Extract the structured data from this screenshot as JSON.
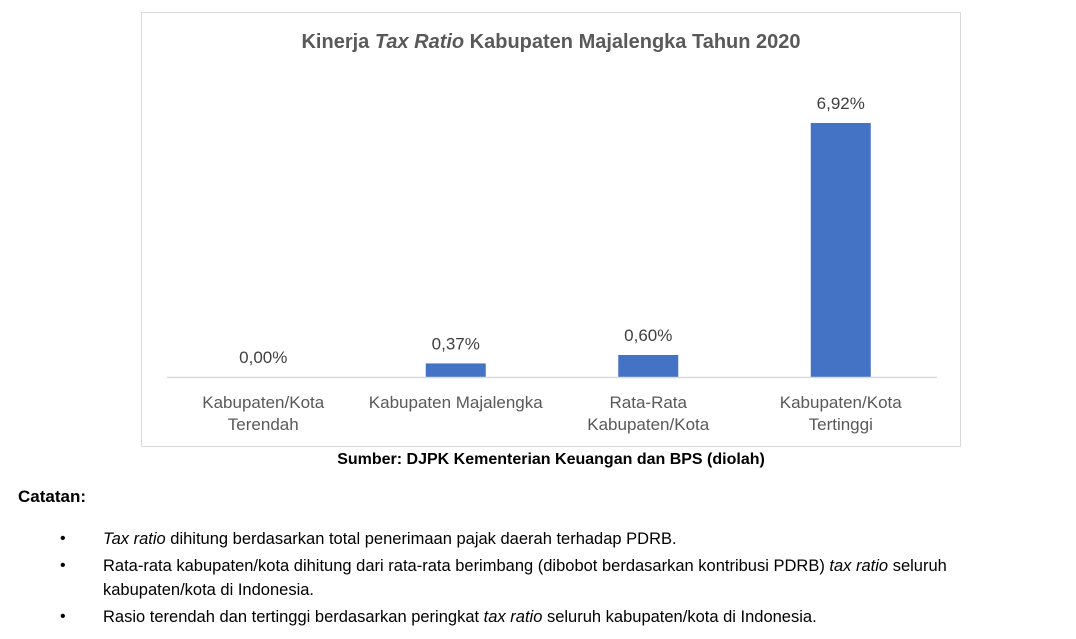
{
  "chart_data": {
    "type": "bar",
    "title_parts": [
      "Kinerja ",
      "Tax Ratio",
      " Kabupaten Majalengka Tahun 2020"
    ],
    "categories": [
      [
        "Kabupaten/Kota",
        "Terendah"
      ],
      [
        "Kabupaten Majalengka"
      ],
      [
        "Rata-Rata",
        "Kabupaten/Kota"
      ],
      [
        "Kabupaten/Kota",
        "Tertinggi"
      ]
    ],
    "values": [
      0.0,
      0.37,
      0.6,
      6.92
    ],
    "data_labels": [
      "0,00%",
      "0,37%",
      "0,60%",
      "6,92%"
    ],
    "ylim": [
      0,
      6.92
    ],
    "bar_color": "#4472c4",
    "axis_color": "#d9d9d9",
    "label_color": "#404040",
    "grid": false,
    "legend": "none",
    "xlabel": "",
    "ylabel": ""
  },
  "source": "Sumber: DJPK Kementerian Keuangan dan BPS (diolah)",
  "notes": {
    "heading": "Catatan:",
    "bullet": "•",
    "items": [
      [
        {
          "t": "Tax ratio",
          "i": true
        },
        {
          "t": " dihitung berdasarkan total penerimaan pajak daerah terhadap PDRB."
        }
      ],
      [
        {
          "t": "Rata-rata kabupaten/kota dihitung dari rata-rata berimbang (dibobot berdasarkan kontribusi PDRB) "
        },
        {
          "t": "tax ratio",
          "i": true
        },
        {
          "t": " seluruh kabupaten/kota di Indonesia."
        }
      ],
      [
        {
          "t": "Rasio terendah dan tertinggi berdasarkan peringkat "
        },
        {
          "t": "tax ratio",
          "i": true
        },
        {
          "t": " seluruh kabupaten/kota di Indonesia."
        }
      ]
    ]
  }
}
